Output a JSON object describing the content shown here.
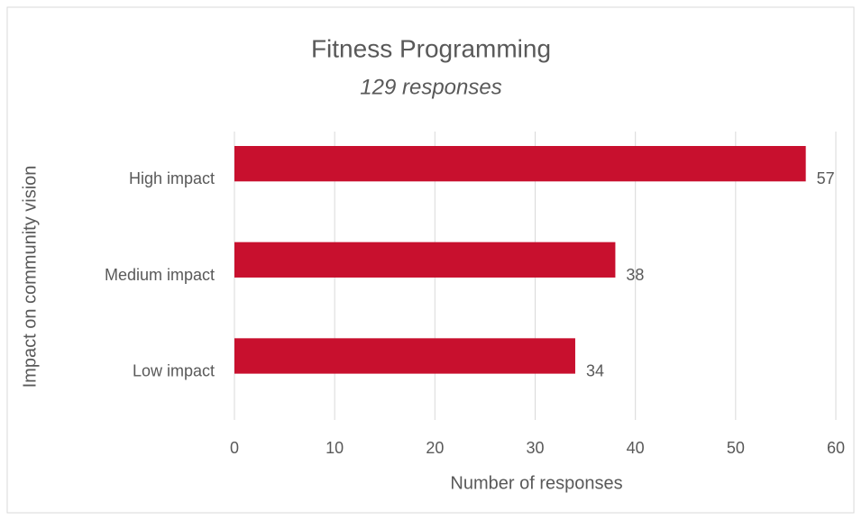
{
  "chart_data": {
    "type": "bar",
    "orientation": "horizontal",
    "title": "Fitness Programming",
    "subtitle": "129 responses",
    "categories": [
      "High impact",
      "Medium impact",
      "Low impact"
    ],
    "values": [
      57,
      38,
      34
    ],
    "color": "#c8102e",
    "xlim": [
      0,
      60
    ],
    "xticks": [
      0,
      10,
      20,
      30,
      40,
      50,
      60
    ],
    "xlabel": "Number of responses",
    "ylabel": "Impact on community vision",
    "grid": true
  }
}
